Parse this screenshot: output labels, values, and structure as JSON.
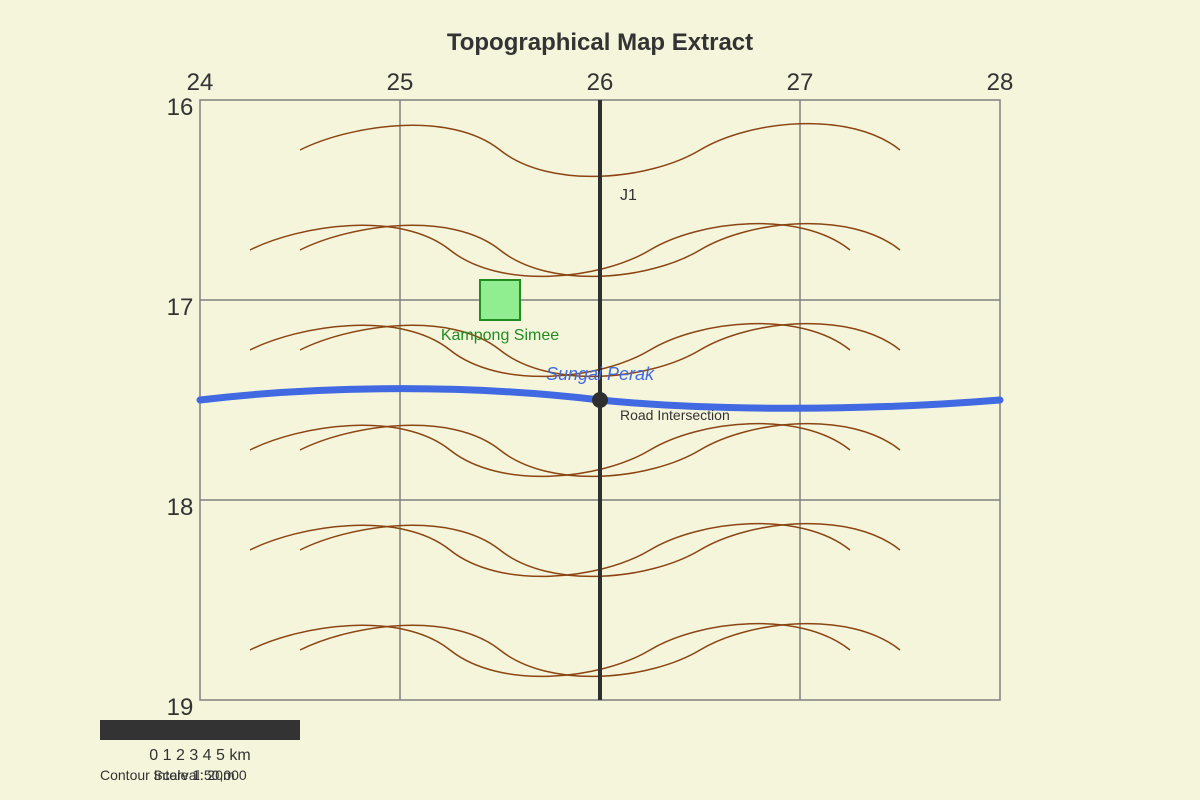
{
  "title": "Topographical Map Extract",
  "grid": {
    "eastings": [
      "24",
      "25",
      "26",
      "27",
      "28"
    ],
    "northings": [
      "16",
      "17",
      "18",
      "19"
    ]
  },
  "features": {
    "river_label": "Sungai Perak",
    "village_label": "Kampong Simee",
    "junction_label": "J1",
    "intersection_label": "Road Intersection"
  },
  "scale_bar": {
    "label": "0 1 2 3 4 5 km",
    "contour_interval": "Contour Interval: 20m",
    "scale_text": "Scale 1:50,000"
  },
  "colors": {
    "background": "#f5f5dc",
    "contour": "#8b4513",
    "river": "#4169e1",
    "road": "#2f2f2f",
    "village_fill": "#90ee90",
    "village_stroke": "#228b22",
    "grid": "#808080"
  }
}
